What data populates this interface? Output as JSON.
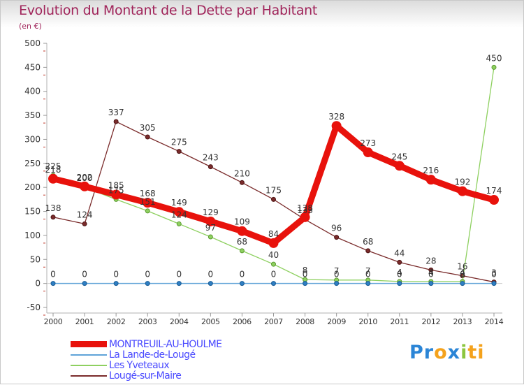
{
  "header": {
    "title": "Evolution du Montant de la Dette par Habitant",
    "unit": "(en €)"
  },
  "logo": {
    "parts": [
      "Pr",
      "o",
      "x",
      "i",
      "ti"
    ]
  },
  "chart_data": {
    "type": "line",
    "title": "Evolution du Montant de la Dette par Habitant",
    "ylabel": "(en €)",
    "xlabel": "",
    "x": [
      2000,
      2001,
      2002,
      2003,
      2004,
      2005,
      2006,
      2007,
      2008,
      2009,
      2010,
      2011,
      2012,
      2013,
      2014
    ],
    "ylim": [
      -50,
      500
    ],
    "yticks": [
      -50,
      0,
      50,
      100,
      150,
      200,
      250,
      300,
      350,
      400,
      450,
      500
    ],
    "grid": false,
    "legend_position": "bottom-left",
    "series": [
      {
        "name": "MONTREUIL-AU-HOULME",
        "color": "#e8120c",
        "values": [
          218,
          202,
          185,
          168,
          149,
          129,
          109,
          84,
          138,
          328,
          273,
          245,
          216,
          192,
          174
        ]
      },
      {
        "name": "La Lande-de-Lougé",
        "color": "#5fa3d8",
        "values": [
          0,
          0,
          0,
          0,
          0,
          0,
          0,
          0,
          0,
          0,
          0,
          0,
          0,
          0,
          0
        ]
      },
      {
        "name": "Les Yveteaux",
        "color": "#8ed060",
        "values": [
          225,
          200,
          175,
          151,
          124,
          97,
          68,
          40,
          8,
          7,
          7,
          4,
          4,
          4,
          450
        ]
      },
      {
        "name": "Lougé-sur-Maire",
        "color": "#7a2b2b",
        "values": [
          138,
          124,
          337,
          305,
          275,
          243,
          210,
          175,
          133,
          96,
          68,
          44,
          28,
          16,
          3
        ]
      }
    ]
  }
}
